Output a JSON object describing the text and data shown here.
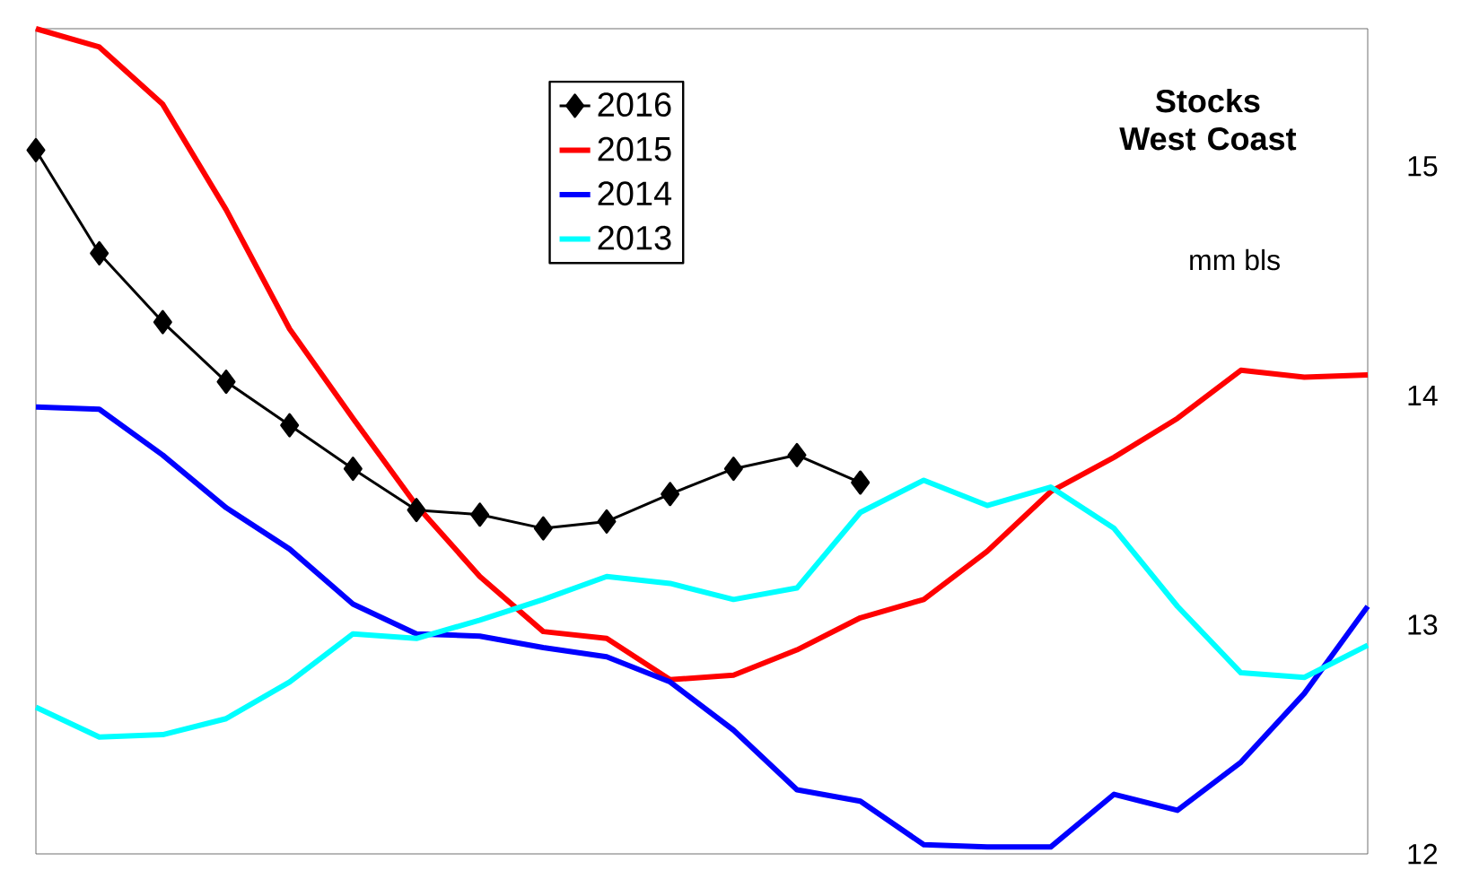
{
  "chart_data": {
    "type": "line",
    "title": "Stocks West Coast",
    "annotations": [
      "mm  bls"
    ],
    "categories": [
      null,
      null,
      null,
      null,
      null,
      null,
      null,
      null,
      null,
      null,
      null,
      null,
      null,
      null,
      null,
      null,
      null,
      null,
      null,
      null,
      null,
      null
    ],
    "series": [
      {
        "name": "2016",
        "color": "#000000",
        "marker": "diamond",
        "values": [
          15.07,
          14.62,
          14.32,
          14.06,
          13.87,
          13.68,
          13.5,
          13.48,
          13.42,
          13.45,
          13.57,
          13.68,
          13.74,
          13.62,
          null,
          null,
          null,
          null,
          null,
          null,
          null,
          null
        ]
      },
      {
        "name": "2015",
        "color": "#ff0000",
        "marker": "none",
        "values": [
          15.6,
          15.52,
          15.27,
          14.81,
          14.29,
          13.9,
          13.52,
          13.21,
          12.97,
          12.94,
          12.76,
          12.78,
          12.89,
          13.03,
          13.11,
          13.32,
          13.58,
          13.73,
          13.9,
          14.11,
          14.08,
          14.09
        ]
      },
      {
        "name": "2014",
        "color": "#0000ff",
        "marker": "none",
        "values": [
          13.95,
          13.94,
          13.74,
          13.51,
          13.33,
          13.09,
          12.96,
          12.95,
          12.9,
          12.86,
          12.75,
          12.54,
          12.28,
          12.23,
          12.04,
          12.03,
          12.03,
          12.26,
          12.19,
          12.4,
          12.7,
          13.08
        ]
      },
      {
        "name": "2013",
        "color": "#00ffff",
        "marker": "none",
        "values": [
          12.64,
          12.51,
          12.52,
          12.59,
          12.75,
          12.96,
          12.94,
          13.02,
          13.11,
          13.21,
          13.18,
          13.11,
          13.16,
          13.49,
          13.63,
          13.52,
          13.6,
          13.42,
          13.08,
          12.79,
          12.77,
          12.91
        ]
      }
    ],
    "ylim": [
      12,
      15.6
    ],
    "yticks": [
      12,
      13,
      14,
      15
    ],
    "legend": "top",
    "grid": false
  }
}
